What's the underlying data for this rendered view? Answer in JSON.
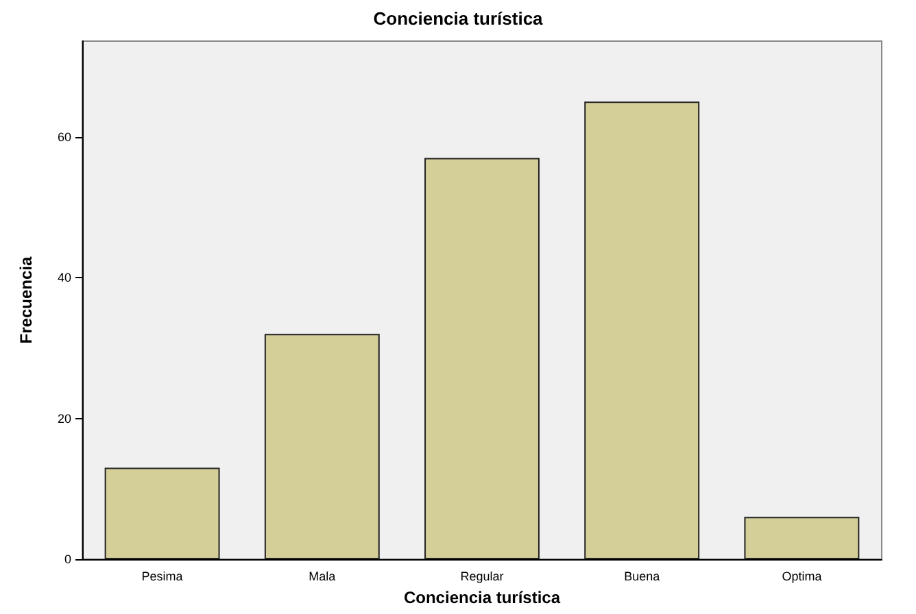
{
  "chart_data": {
    "type": "bar",
    "title": "Conciencia turística",
    "xlabel": "Conciencia turística",
    "ylabel": "Frecuencia",
    "categories": [
      "Pesima",
      "Mala",
      "Regular",
      "Buena",
      "Optima"
    ],
    "values": [
      13,
      32,
      57,
      65,
      6
    ],
    "color": "#d4cf98",
    "ylim": [
      0,
      73.6
    ],
    "yticks": [
      0,
      20,
      40,
      60
    ],
    "grid": false
  }
}
